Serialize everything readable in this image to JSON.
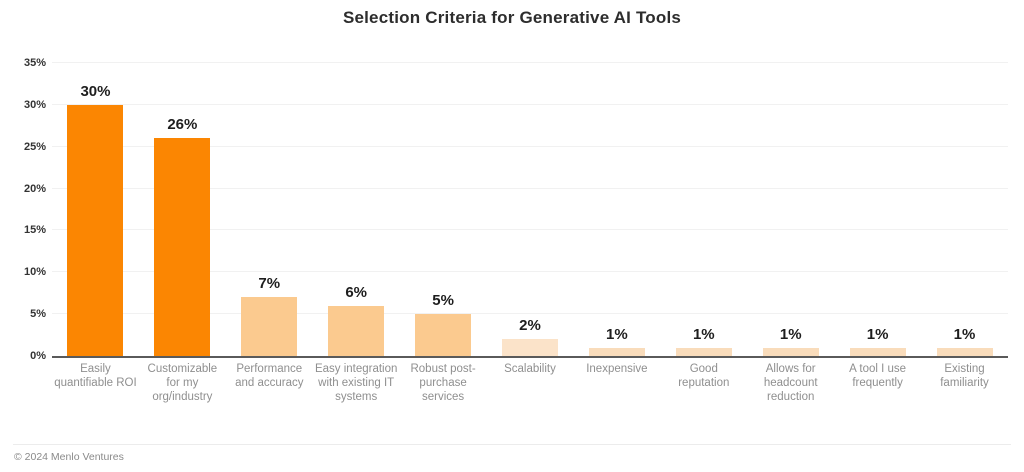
{
  "chart_data": {
    "type": "bar",
    "title": "Selection Criteria for Generative AI Tools",
    "categories": [
      "Easily quantifiable ROI",
      "Customizable for my org/industry",
      "Performance and accuracy",
      "Easy integration with existing IT systems",
      "Robust post-purchase services",
      "Scalability",
      "Inexpensive",
      "Good reputation",
      "Allows for headcount reduction",
      "A tool I use frequently",
      "Existing familiarity"
    ],
    "category_label_lines": [
      [
        "Easily",
        "quantifiable ROI"
      ],
      [
        "Customizable",
        "for my",
        "org/industry"
      ],
      [
        "Performance",
        "and accuracy"
      ],
      [
        "Easy integration",
        "with existing IT",
        "systems"
      ],
      [
        "Robust post-",
        "purchase",
        "services"
      ],
      [
        "Scalability"
      ],
      [
        "Inexpensive"
      ],
      [
        "Good",
        "reputation"
      ],
      [
        "Allows for",
        "headcount",
        "reduction"
      ],
      [
        "A tool I use",
        "frequently"
      ],
      [
        "Existing",
        "familiarity"
      ]
    ],
    "values": [
      30,
      26,
      7,
      6,
      5,
      2,
      1,
      1,
      1,
      1,
      1
    ],
    "value_labels": [
      "30%",
      "26%",
      "7%",
      "6%",
      "5%",
      "2%",
      "1%",
      "1%",
      "1%",
      "1%",
      "1%"
    ],
    "bar_colors": [
      "#FB8602",
      "#FB8602",
      "#FBCA8F",
      "#FBCA8F",
      "#FBCA8F",
      "#FBE3C9",
      "#F9DCBB",
      "#F9DCBB",
      "#F9DCBB",
      "#F9DCBB",
      "#F9DCBB"
    ],
    "xlabel": "",
    "ylabel": "",
    "ylim": [
      0,
      35
    ],
    "ytick_values": [
      0,
      5,
      10,
      15,
      20,
      25,
      30,
      35
    ],
    "yticks": [
      "0%",
      "5%",
      "10%",
      "15%",
      "20%",
      "25%",
      "30%",
      "35%"
    ],
    "grid": "horizontal-light",
    "legend": "none",
    "colors": {
      "orange": "#FB8602",
      "peach": "#FBCA8F",
      "light_peach_2pct": "#FBE3C9",
      "light_peach_1pct": "#F9DCBB",
      "gridline": "#F1F1F1",
      "axis_baseline": "#5A5A5A",
      "title_text": "#2D2D2D",
      "tick_text": "#333333",
      "value_label_text": "#1E1E1E",
      "category_text": "#8F8F8F"
    }
  },
  "footer": {
    "copyright": "© 2024 Menlo Ventures"
  }
}
